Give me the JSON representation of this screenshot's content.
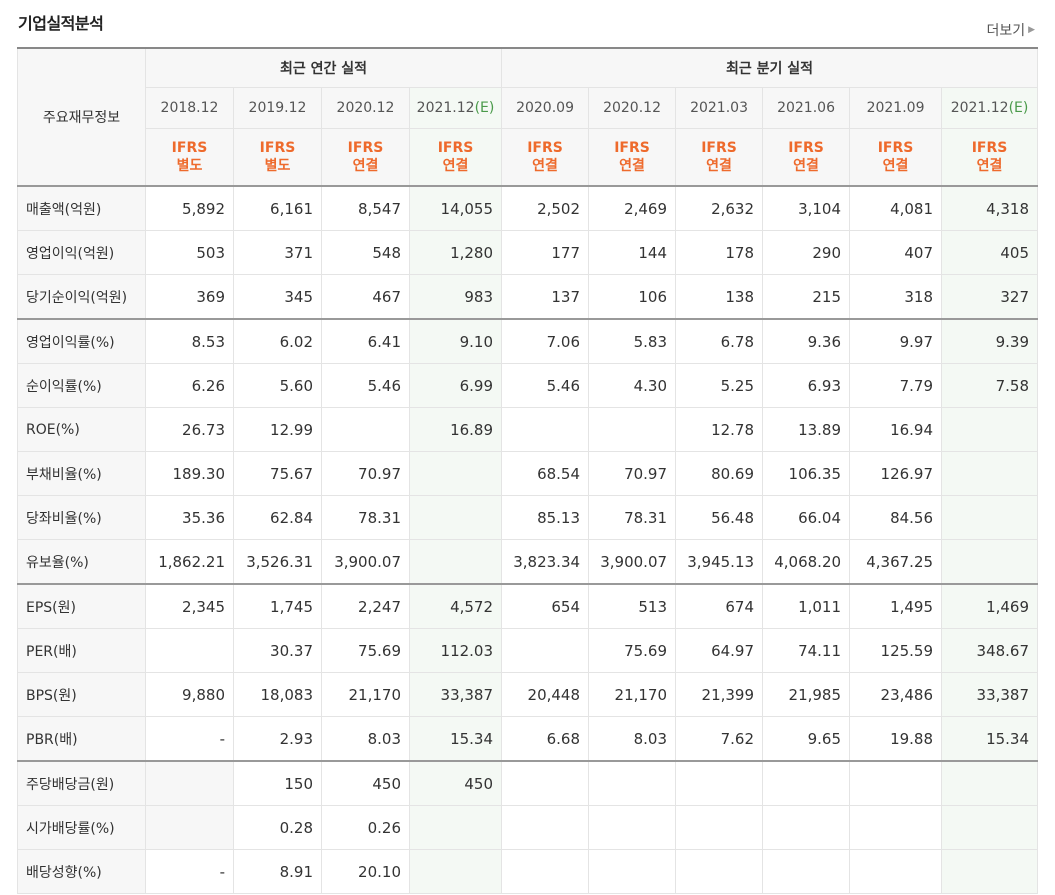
{
  "page": {
    "title": "기업실적분석",
    "more_label": "더보기"
  },
  "table": {
    "corner_label": "주요재무정보",
    "groups": [
      {
        "label": "최근 연간 실적"
      },
      {
        "label": "최근 분기 실적"
      }
    ],
    "periods": [
      {
        "label": "2018.12",
        "ifrs": "IFRS",
        "basis": "별도",
        "estimate": false
      },
      {
        "label": "2019.12",
        "ifrs": "IFRS",
        "basis": "별도",
        "estimate": false
      },
      {
        "label": "2020.12",
        "ifrs": "IFRS",
        "basis": "연결",
        "estimate": false
      },
      {
        "label": "2021.12",
        "suffix": "(E)",
        "ifrs": "IFRS",
        "basis": "연결",
        "estimate": true
      },
      {
        "label": "2020.09",
        "ifrs": "IFRS",
        "basis": "연결",
        "estimate": false
      },
      {
        "label": "2020.12",
        "ifrs": "IFRS",
        "basis": "연결",
        "estimate": false
      },
      {
        "label": "2021.03",
        "ifrs": "IFRS",
        "basis": "연결",
        "estimate": false
      },
      {
        "label": "2021.06",
        "ifrs": "IFRS",
        "basis": "연결",
        "estimate": false
      },
      {
        "label": "2021.09",
        "ifrs": "IFRS",
        "basis": "연결",
        "estimate": false
      },
      {
        "label": "2021.12",
        "suffix": "(E)",
        "ifrs": "IFRS",
        "basis": "연결",
        "estimate": true
      }
    ],
    "rows": [
      {
        "label": "매출액(억원)",
        "values": [
          "5,892",
          "6,161",
          "8,547",
          "14,055",
          "2,502",
          "2,469",
          "2,632",
          "3,104",
          "4,081",
          "4,318"
        ]
      },
      {
        "label": "영업이익(억원)",
        "values": [
          "503",
          "371",
          "548",
          "1,280",
          "177",
          "144",
          "178",
          "290",
          "407",
          "405"
        ]
      },
      {
        "label": "당기순이익(억원)",
        "values": [
          "369",
          "345",
          "467",
          "983",
          "137",
          "106",
          "138",
          "215",
          "318",
          "327"
        ]
      },
      {
        "label": "영업이익률(%)",
        "values": [
          "8.53",
          "6.02",
          "6.41",
          "9.10",
          "7.06",
          "5.83",
          "6.78",
          "9.36",
          "9.97",
          "9.39"
        ]
      },
      {
        "label": "순이익률(%)",
        "values": [
          "6.26",
          "5.60",
          "5.46",
          "6.99",
          "5.46",
          "4.30",
          "5.25",
          "6.93",
          "7.79",
          "7.58"
        ]
      },
      {
        "label": "ROE(%)",
        "values": [
          "26.73",
          "12.99",
          "",
          "16.89",
          "",
          "",
          "12.78",
          "13.89",
          "16.94",
          ""
        ]
      },
      {
        "label": "부채비율(%)",
        "values": [
          "189.30",
          "75.67",
          "70.97",
          "",
          "68.54",
          "70.97",
          "80.69",
          "106.35",
          "126.97",
          ""
        ]
      },
      {
        "label": "당좌비율(%)",
        "values": [
          "35.36",
          "62.84",
          "78.31",
          "",
          "85.13",
          "78.31",
          "56.48",
          "66.04",
          "84.56",
          ""
        ]
      },
      {
        "label": "유보율(%)",
        "values": [
          "1,862.21",
          "3,526.31",
          "3,900.07",
          "",
          "3,823.34",
          "3,900.07",
          "3,945.13",
          "4,068.20",
          "4,367.25",
          ""
        ]
      },
      {
        "label": "EPS(원)",
        "values": [
          "2,345",
          "1,745",
          "2,247",
          "4,572",
          "654",
          "513",
          "674",
          "1,011",
          "1,495",
          "1,469"
        ]
      },
      {
        "label": "PER(배)",
        "values": [
          "",
          "30.37",
          "75.69",
          "112.03",
          "",
          "75.69",
          "64.97",
          "74.11",
          "125.59",
          "348.67"
        ]
      },
      {
        "label": "BPS(원)",
        "values": [
          "9,880",
          "18,083",
          "21,170",
          "33,387",
          "20,448",
          "21,170",
          "21,399",
          "21,985",
          "23,486",
          "33,387"
        ]
      },
      {
        "label": "PBR(배)",
        "values": [
          "-",
          "2.93",
          "8.03",
          "15.34",
          "6.68",
          "8.03",
          "7.62",
          "9.65",
          "19.88",
          "15.34"
        ]
      },
      {
        "label": "주당배당금(원)",
        "values": [
          "",
          "150",
          "450",
          "450",
          "",
          "",
          "",
          "",
          "",
          ""
        ]
      },
      {
        "label": "시가배당률(%)",
        "values": [
          "",
          "0.28",
          "0.26",
          "",
          "",
          "",
          "",
          "",
          "",
          ""
        ]
      },
      {
        "label": "배당성향(%)",
        "values": [
          "-",
          "8.91",
          "20.10",
          "",
          "",
          "",
          "",
          "",
          "",
          ""
        ]
      }
    ]
  }
}
